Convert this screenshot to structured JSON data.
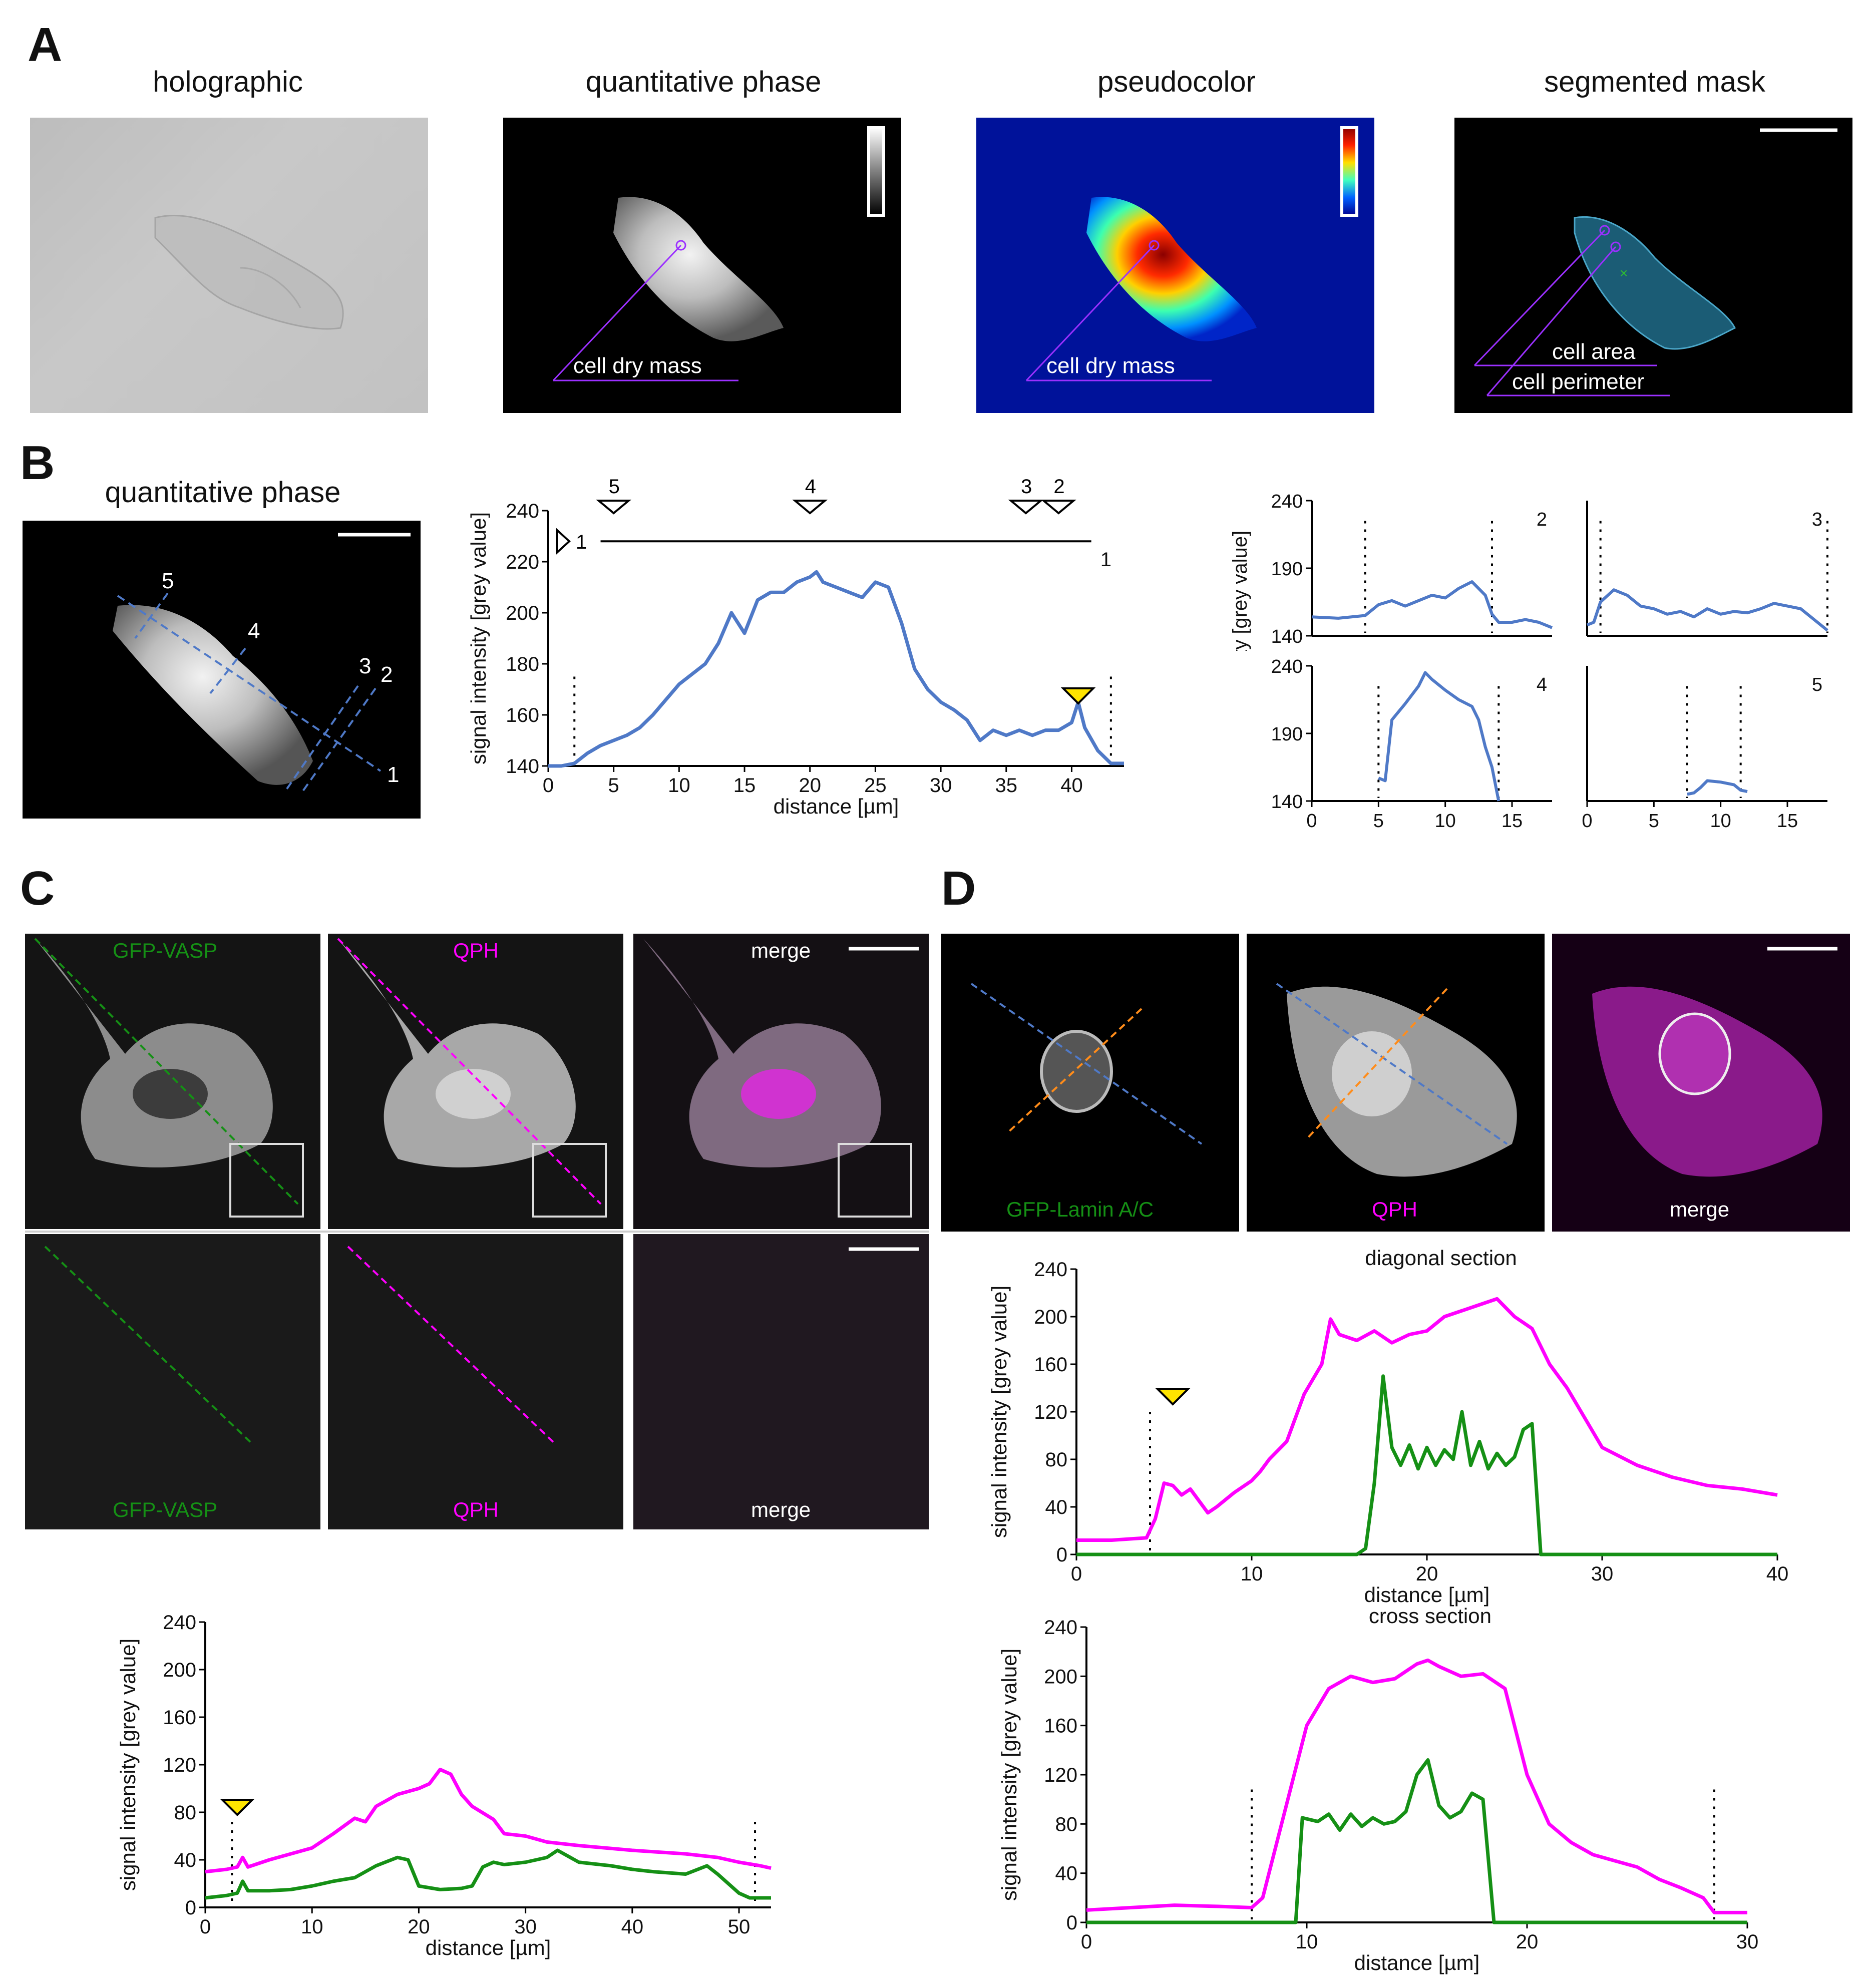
{
  "panels": {
    "A": "A",
    "B": "B",
    "C": "C",
    "D": "D"
  },
  "colors": {
    "blue": "#4f79c7",
    "magenta": "#ff00ff",
    "green": "#159015",
    "purple": "#9b30ff",
    "arrow_yellow": "#ffe400",
    "cell_fill": "#1b5c75"
  },
  "panelA": {
    "titles": [
      "holographic",
      "quantitative phase",
      "pseudocolor",
      "segmented mask"
    ],
    "labels": {
      "dry_mass": "cell dry mass",
      "area": "cell area",
      "perimeter": "cell perimeter"
    }
  },
  "panelB": {
    "title": "quantitative phase",
    "line_labels": [
      "1",
      "2",
      "3",
      "4",
      "5"
    ],
    "markers": {
      "m1": "1",
      "m2": "2",
      "m3": "3",
      "m4": "4",
      "m5": "5"
    }
  },
  "panelC": {
    "top_labels": [
      "GFP-VASP",
      "QPH",
      "merge"
    ],
    "bottom_labels": [
      "GFP-VASP",
      "QPH",
      "merge"
    ]
  },
  "panelD": {
    "labels": [
      "GFP-Lamin A/C",
      "QPH",
      "merge"
    ],
    "chart_titles": {
      "diagonal": "diagonal section",
      "cross": "cross section"
    }
  },
  "chart_data": [
    {
      "id": "B-main",
      "type": "line",
      "title": "",
      "xlabel": "distance [µm]",
      "ylabel": "signal intensity [grey value]",
      "xlim": [
        0,
        44
      ],
      "ylim": [
        140,
        240
      ],
      "xticks": [
        0,
        5,
        10,
        15,
        20,
        25,
        30,
        35,
        40
      ],
      "yticks": [
        140,
        160,
        180,
        200,
        220,
        240
      ],
      "series": [
        {
          "name": "1",
          "color": "#4f79c7",
          "x": [
            0,
            1,
            2,
            3,
            4,
            5,
            6,
            7,
            8,
            9,
            10,
            11,
            12,
            13,
            14,
            15,
            16,
            17,
            18,
            19,
            20,
            20.5,
            21,
            22,
            23,
            24,
            25,
            26,
            27,
            28,
            29,
            30,
            31,
            32,
            33,
            34,
            35,
            36,
            37,
            38,
            39,
            40,
            40.5,
            41,
            42,
            43,
            44
          ],
          "y": [
            140,
            140,
            141,
            145,
            148,
            150,
            152,
            155,
            160,
            166,
            172,
            176,
            180,
            188,
            200,
            192,
            205,
            208,
            208,
            212,
            214,
            216,
            212,
            210,
            208,
            206,
            212,
            210,
            196,
            178,
            170,
            165,
            162,
            158,
            150,
            154,
            152,
            154,
            152,
            154,
            154,
            157,
            165,
            155,
            146,
            141,
            141
          ]
        }
      ],
      "dotted_x": [
        2,
        43
      ],
      "point_labels": [
        {
          "label": "1",
          "x": 43,
          "y": 221
        }
      ],
      "markers": [
        {
          "label": "5",
          "x": 5
        },
        {
          "label": "4",
          "x": 20
        },
        {
          "label": "3",
          "x": 36.5
        },
        {
          "label": "2",
          "x": 39
        }
      ],
      "arrow_x": 40.5
    },
    {
      "id": "B-2",
      "type": "line",
      "xlim": [
        0,
        18
      ],
      "ylim": [
        140,
        240
      ],
      "xticks": [],
      "yticks": [
        140,
        190,
        240
      ],
      "label": "2",
      "dotted_x": [
        4,
        13.5
      ],
      "series": [
        {
          "color": "#4f79c7",
          "x": [
            0,
            2,
            4,
            5,
            6,
            7,
            8,
            9,
            10,
            11,
            12,
            13,
            13.5,
            14,
            15,
            16,
            17,
            18
          ],
          "y": [
            154,
            153,
            155,
            163,
            166,
            162,
            166,
            170,
            168,
            175,
            180,
            170,
            156,
            150,
            150,
            152,
            150,
            146
          ]
        }
      ]
    },
    {
      "id": "B-3",
      "type": "line",
      "xlim": [
        0,
        18
      ],
      "ylim": [
        140,
        240
      ],
      "xticks": [],
      "yticks": [],
      "label": "3",
      "dotted_x": [
        1,
        18
      ],
      "series": [
        {
          "color": "#4f79c7",
          "x": [
            0,
            0.5,
            1,
            2,
            3,
            4,
            5,
            6,
            7,
            8,
            9,
            10,
            11,
            12,
            13,
            14,
            15,
            16,
            17,
            18
          ],
          "y": [
            148,
            150,
            165,
            174,
            170,
            162,
            160,
            156,
            158,
            154,
            160,
            156,
            158,
            157,
            160,
            164,
            162,
            160,
            152,
            144
          ]
        }
      ]
    },
    {
      "id": "B-4",
      "type": "line",
      "xlim": [
        0,
        18
      ],
      "ylim": [
        140,
        240
      ],
      "xticks": [
        0,
        5,
        10,
        15
      ],
      "yticks": [
        140,
        190,
        240
      ],
      "label": "4",
      "dotted_x": [
        5,
        14
      ],
      "series": [
        {
          "color": "#4f79c7",
          "x": [
            5,
            5.5,
            6,
            7,
            8,
            8.5,
            9,
            10,
            11,
            12,
            12.5,
            13,
            13.5,
            14
          ],
          "y": [
            157,
            155,
            200,
            212,
            225,
            235,
            230,
            222,
            215,
            210,
            200,
            180,
            165,
            140
          ]
        }
      ]
    },
    {
      "id": "B-5",
      "type": "line",
      "xlim": [
        0,
        18
      ],
      "ylim": [
        140,
        240
      ],
      "xticks": [
        0,
        5,
        10,
        15
      ],
      "yticks": [],
      "label": "5",
      "dotted_x": [
        7.5,
        11.5
      ],
      "series": [
        {
          "color": "#4f79c7",
          "x": [
            7.5,
            8,
            8.5,
            9,
            10,
            11,
            11.5,
            12
          ],
          "y": [
            145,
            146,
            150,
            155,
            154,
            152,
            148,
            147
          ]
        }
      ]
    },
    {
      "id": "C",
      "type": "line",
      "xlabel": "distance [µm]",
      "ylabel": "signal intensity [grey value]",
      "xlim": [
        0,
        53
      ],
      "ylim": [
        0,
        240
      ],
      "xticks": [
        0,
        10,
        20,
        30,
        40,
        50
      ],
      "yticks": [
        0,
        40,
        80,
        120,
        160,
        200,
        240
      ],
      "dotted_x": [
        2.5,
        51.5
      ],
      "arrow_x": 3,
      "series": [
        {
          "name": "QPH",
          "color": "#ff00ff",
          "x": [
            0,
            2,
            3,
            3.5,
            4,
            6,
            8,
            10,
            12,
            14,
            15,
            16,
            18,
            20,
            21,
            22,
            23,
            24,
            25,
            27,
            28,
            30,
            32,
            35,
            40,
            45,
            48,
            50,
            52,
            53
          ],
          "y": [
            30,
            32,
            34,
            42,
            34,
            40,
            45,
            50,
            62,
            75,
            72,
            85,
            95,
            100,
            104,
            116,
            112,
            95,
            85,
            74,
            62,
            60,
            55,
            52,
            48,
            45,
            42,
            38,
            35,
            33
          ]
        },
        {
          "name": "GFP-VASP",
          "color": "#159015",
          "x": [
            0,
            2,
            3,
            3.5,
            4,
            6,
            8,
            10,
            12,
            14,
            16,
            18,
            19,
            20,
            22,
            24,
            25,
            26,
            27,
            28,
            30,
            32,
            33,
            35,
            38,
            40,
            42,
            45,
            47,
            48,
            50,
            51,
            52,
            53
          ],
          "y": [
            8,
            10,
            12,
            22,
            14,
            14,
            15,
            18,
            22,
            25,
            35,
            42,
            40,
            18,
            15,
            16,
            18,
            34,
            38,
            36,
            38,
            42,
            48,
            38,
            35,
            32,
            30,
            28,
            35,
            28,
            12,
            8,
            8,
            8
          ]
        }
      ]
    },
    {
      "id": "D-diagonal",
      "type": "line",
      "title": "diagonal section",
      "xlabel": "distance [µm]",
      "ylabel": "signal intensity [grey value]",
      "xlim": [
        0,
        40
      ],
      "ylim": [
        0,
        240
      ],
      "xticks": [
        0,
        10,
        20,
        30,
        40
      ],
      "yticks": [
        0,
        40,
        80,
        120,
        160,
        200,
        240
      ],
      "dotted_x": [
        4.2
      ],
      "arrow_x": 5.5,
      "series": [
        {
          "name": "QPH",
          "color": "#ff00ff",
          "x": [
            0,
            2,
            3,
            4,
            4.5,
            5,
            5.5,
            6,
            6.5,
            7,
            7.5,
            8,
            9,
            10,
            10.5,
            11,
            12,
            12.5,
            13,
            14,
            14.5,
            15,
            16,
            17,
            18,
            19,
            20,
            21,
            22,
            23,
            24,
            25,
            26,
            27,
            28,
            29,
            30,
            32,
            34,
            36,
            38,
            40
          ],
          "y": [
            12,
            12,
            13,
            14,
            30,
            60,
            58,
            50,
            55,
            45,
            35,
            40,
            52,
            62,
            70,
            80,
            95,
            115,
            135,
            160,
            198,
            185,
            180,
            188,
            178,
            185,
            188,
            200,
            205,
            210,
            215,
            200,
            190,
            160,
            140,
            115,
            90,
            75,
            65,
            58,
            55,
            50
          ]
        },
        {
          "name": "GFP-Lamin A/C",
          "color": "#159015",
          "x": [
            0,
            16,
            16.5,
            17,
            17.5,
            18,
            18.5,
            19,
            19.5,
            20,
            20.5,
            21,
            21.5,
            22,
            22.5,
            23,
            23.5,
            24,
            24.5,
            25,
            25.5,
            26,
            26.5,
            40
          ],
          "y": [
            0,
            0,
            5,
            60,
            150,
            90,
            75,
            92,
            72,
            90,
            75,
            88,
            80,
            120,
            75,
            95,
            72,
            85,
            75,
            82,
            105,
            110,
            0,
            0
          ]
        }
      ]
    },
    {
      "id": "D-cross",
      "type": "line",
      "title": "cross section",
      "xlabel": "distance [µm]",
      "ylabel": "signal intensity [grey value]",
      "xlim": [
        0,
        30
      ],
      "ylim": [
        0,
        240
      ],
      "xticks": [
        0,
        10,
        20,
        30
      ],
      "yticks": [
        0,
        40,
        80,
        120,
        160,
        200,
        240
      ],
      "dotted_x": [
        7.5,
        28.5
      ],
      "series": [
        {
          "name": "QPH",
          "color": "#ff00ff",
          "x": [
            0,
            2,
            4,
            6,
            7.5,
            8,
            9,
            10,
            11,
            12,
            13,
            14,
            15,
            15.5,
            16,
            17,
            18,
            19,
            20,
            21,
            22,
            23,
            24,
            25,
            26,
            27,
            28,
            28.5,
            29,
            30
          ],
          "y": [
            10,
            12,
            14,
            13,
            12,
            20,
            90,
            160,
            190,
            200,
            195,
            198,
            210,
            213,
            208,
            200,
            202,
            190,
            120,
            80,
            65,
            55,
            50,
            45,
            35,
            28,
            20,
            8,
            8,
            8
          ]
        },
        {
          "name": "GFP-Lamin A/C",
          "color": "#159015",
          "x": [
            0,
            9.5,
            9.8,
            10.5,
            11,
            11.5,
            12,
            12.5,
            13,
            13.5,
            14,
            14.5,
            15,
            15.5,
            16,
            16.5,
            17,
            17.5,
            18,
            18.5,
            30
          ],
          "y": [
            0,
            0,
            85,
            82,
            88,
            75,
            88,
            78,
            85,
            80,
            82,
            90,
            120,
            132,
            95,
            85,
            90,
            105,
            100,
            0,
            0
          ]
        }
      ]
    }
  ]
}
